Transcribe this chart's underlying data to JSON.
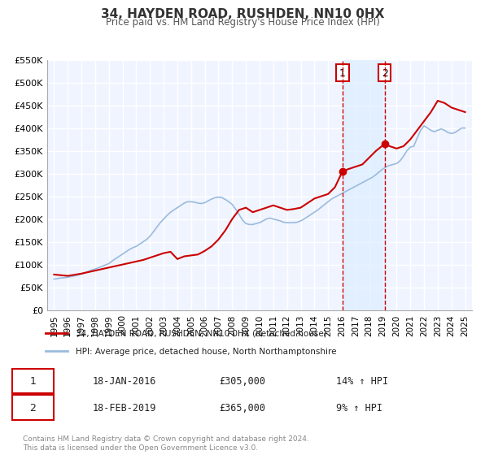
{
  "title": "34, HAYDEN ROAD, RUSHDEN, NN10 0HX",
  "subtitle": "Price paid vs. HM Land Registry's House Price Index (HPI)",
  "xlabel": "",
  "ylabel": "",
  "ylim": [
    0,
    550000
  ],
  "xlim": [
    1994.5,
    2025.5
  ],
  "yticks": [
    0,
    50000,
    100000,
    150000,
    200000,
    250000,
    300000,
    350000,
    400000,
    450000,
    500000,
    550000
  ],
  "ytick_labels": [
    "£0",
    "£50K",
    "£100K",
    "£150K",
    "£200K",
    "£250K",
    "£300K",
    "£350K",
    "£400K",
    "£450K",
    "£500K",
    "£550K"
  ],
  "xticks": [
    1995,
    1996,
    1997,
    1998,
    1999,
    2000,
    2001,
    2002,
    2003,
    2004,
    2005,
    2006,
    2007,
    2008,
    2009,
    2010,
    2011,
    2012,
    2013,
    2014,
    2015,
    2016,
    2017,
    2018,
    2019,
    2020,
    2021,
    2022,
    2023,
    2024,
    2025
  ],
  "bg_color": "#ffffff",
  "plot_bg_color": "#f0f4ff",
  "grid_color": "#ffffff",
  "red_line_color": "#cc0000",
  "blue_line_color": "#99bbdd",
  "marker_color": "#cc0000",
  "sale1_x": 2016.05,
  "sale1_y": 305000,
  "sale2_x": 2019.13,
  "sale2_y": 365000,
  "vline1_x": 2016.05,
  "vline2_x": 2019.13,
  "vline_color": "#cc0000",
  "shade_color": "#ddeeff",
  "legend_label_red": "34, HAYDEN ROAD, RUSHDEN, NN10 0HX (detached house)",
  "legend_label_blue": "HPI: Average price, detached house, North Northamptonshire",
  "annotation1_label": "1",
  "annotation2_label": "2",
  "table_row1": [
    "1",
    "18-JAN-2016",
    "£305,000",
    "14% ↑ HPI"
  ],
  "table_row2": [
    "2",
    "18-FEB-2019",
    "£365,000",
    "9% ↑ HPI"
  ],
  "footer": "Contains HM Land Registry data © Crown copyright and database right 2024.\nThis data is licensed under the Open Government Licence v3.0.",
  "hpi_x": [
    1995.0,
    1995.25,
    1995.5,
    1995.75,
    1996.0,
    1996.25,
    1996.5,
    1996.75,
    1997.0,
    1997.25,
    1997.5,
    1997.75,
    1998.0,
    1998.25,
    1998.5,
    1998.75,
    1999.0,
    1999.25,
    1999.5,
    1999.75,
    2000.0,
    2000.25,
    2000.5,
    2000.75,
    2001.0,
    2001.25,
    2001.5,
    2001.75,
    2002.0,
    2002.25,
    2002.5,
    2002.75,
    2003.0,
    2003.25,
    2003.5,
    2003.75,
    2004.0,
    2004.25,
    2004.5,
    2004.75,
    2005.0,
    2005.25,
    2005.5,
    2005.75,
    2006.0,
    2006.25,
    2006.5,
    2006.75,
    2007.0,
    2007.25,
    2007.5,
    2007.75,
    2008.0,
    2008.25,
    2008.5,
    2008.75,
    2009.0,
    2009.25,
    2009.5,
    2009.75,
    2010.0,
    2010.25,
    2010.5,
    2010.75,
    2011.0,
    2011.25,
    2011.5,
    2011.75,
    2012.0,
    2012.25,
    2012.5,
    2012.75,
    2013.0,
    2013.25,
    2013.5,
    2013.75,
    2014.0,
    2014.25,
    2014.5,
    2014.75,
    2015.0,
    2015.25,
    2015.5,
    2015.75,
    2016.0,
    2016.25,
    2016.5,
    2016.75,
    2017.0,
    2017.25,
    2017.5,
    2017.75,
    2018.0,
    2018.25,
    2018.5,
    2018.75,
    2019.0,
    2019.25,
    2019.5,
    2019.75,
    2020.0,
    2020.25,
    2020.5,
    2020.75,
    2021.0,
    2021.25,
    2021.5,
    2021.75,
    2022.0,
    2022.25,
    2022.5,
    2022.75,
    2023.0,
    2023.25,
    2023.5,
    2023.75,
    2024.0,
    2024.25,
    2024.5,
    2024.75,
    2025.0
  ],
  "hpi_y": [
    68000,
    69000,
    70500,
    71000,
    72000,
    73500,
    75000,
    77000,
    79000,
    82000,
    85000,
    88000,
    90000,
    93000,
    96000,
    99000,
    102000,
    108000,
    113000,
    118000,
    123000,
    128000,
    133000,
    137000,
    140000,
    145000,
    150000,
    155000,
    162000,
    172000,
    182000,
    192000,
    200000,
    208000,
    215000,
    220000,
    225000,
    230000,
    235000,
    238000,
    238000,
    237000,
    235000,
    234000,
    236000,
    240000,
    244000,
    247000,
    248000,
    247000,
    243000,
    238000,
    232000,
    222000,
    210000,
    198000,
    190000,
    188000,
    188000,
    190000,
    192000,
    196000,
    200000,
    202000,
    200000,
    198000,
    196000,
    193000,
    192000,
    192000,
    192000,
    193000,
    196000,
    200000,
    205000,
    210000,
    215000,
    220000,
    226000,
    232000,
    238000,
    244000,
    248000,
    252000,
    256000,
    260000,
    264000,
    268000,
    272000,
    276000,
    280000,
    284000,
    288000,
    292000,
    298000,
    304000,
    310000,
    315000,
    318000,
    320000,
    322000,
    328000,
    338000,
    350000,
    358000,
    360000,
    378000,
    395000,
    405000,
    400000,
    395000,
    392000,
    395000,
    398000,
    395000,
    390000,
    388000,
    390000,
    395000,
    400000,
    400000
  ],
  "price_x": [
    1995.0,
    1996.0,
    1997.0,
    1998.5,
    2000.0,
    2001.5,
    2002.5,
    2003.0,
    2003.5,
    2004.0,
    2004.5,
    2005.0,
    2005.5,
    2006.0,
    2006.5,
    2007.0,
    2007.5,
    2008.0,
    2008.5,
    2009.0,
    2009.5,
    2010.0,
    2010.5,
    2011.0,
    2011.5,
    2012.0,
    2012.5,
    2013.0,
    2013.5,
    2014.0,
    2014.5,
    2015.0,
    2015.5,
    2016.05,
    2016.5,
    2017.0,
    2017.5,
    2018.0,
    2018.5,
    2019.13,
    2019.5,
    2020.0,
    2020.5,
    2021.0,
    2021.5,
    2022.0,
    2022.5,
    2023.0,
    2023.5,
    2024.0,
    2024.5,
    2025.0
  ],
  "price_y": [
    78000,
    75000,
    80000,
    90000,
    100000,
    110000,
    120000,
    125000,
    128000,
    112000,
    118000,
    120000,
    122000,
    130000,
    140000,
    155000,
    175000,
    200000,
    220000,
    225000,
    215000,
    220000,
    225000,
    230000,
    225000,
    220000,
    222000,
    225000,
    235000,
    245000,
    250000,
    255000,
    270000,
    305000,
    310000,
    315000,
    320000,
    335000,
    350000,
    365000,
    360000,
    355000,
    360000,
    375000,
    395000,
    415000,
    435000,
    460000,
    455000,
    445000,
    440000,
    435000
  ]
}
